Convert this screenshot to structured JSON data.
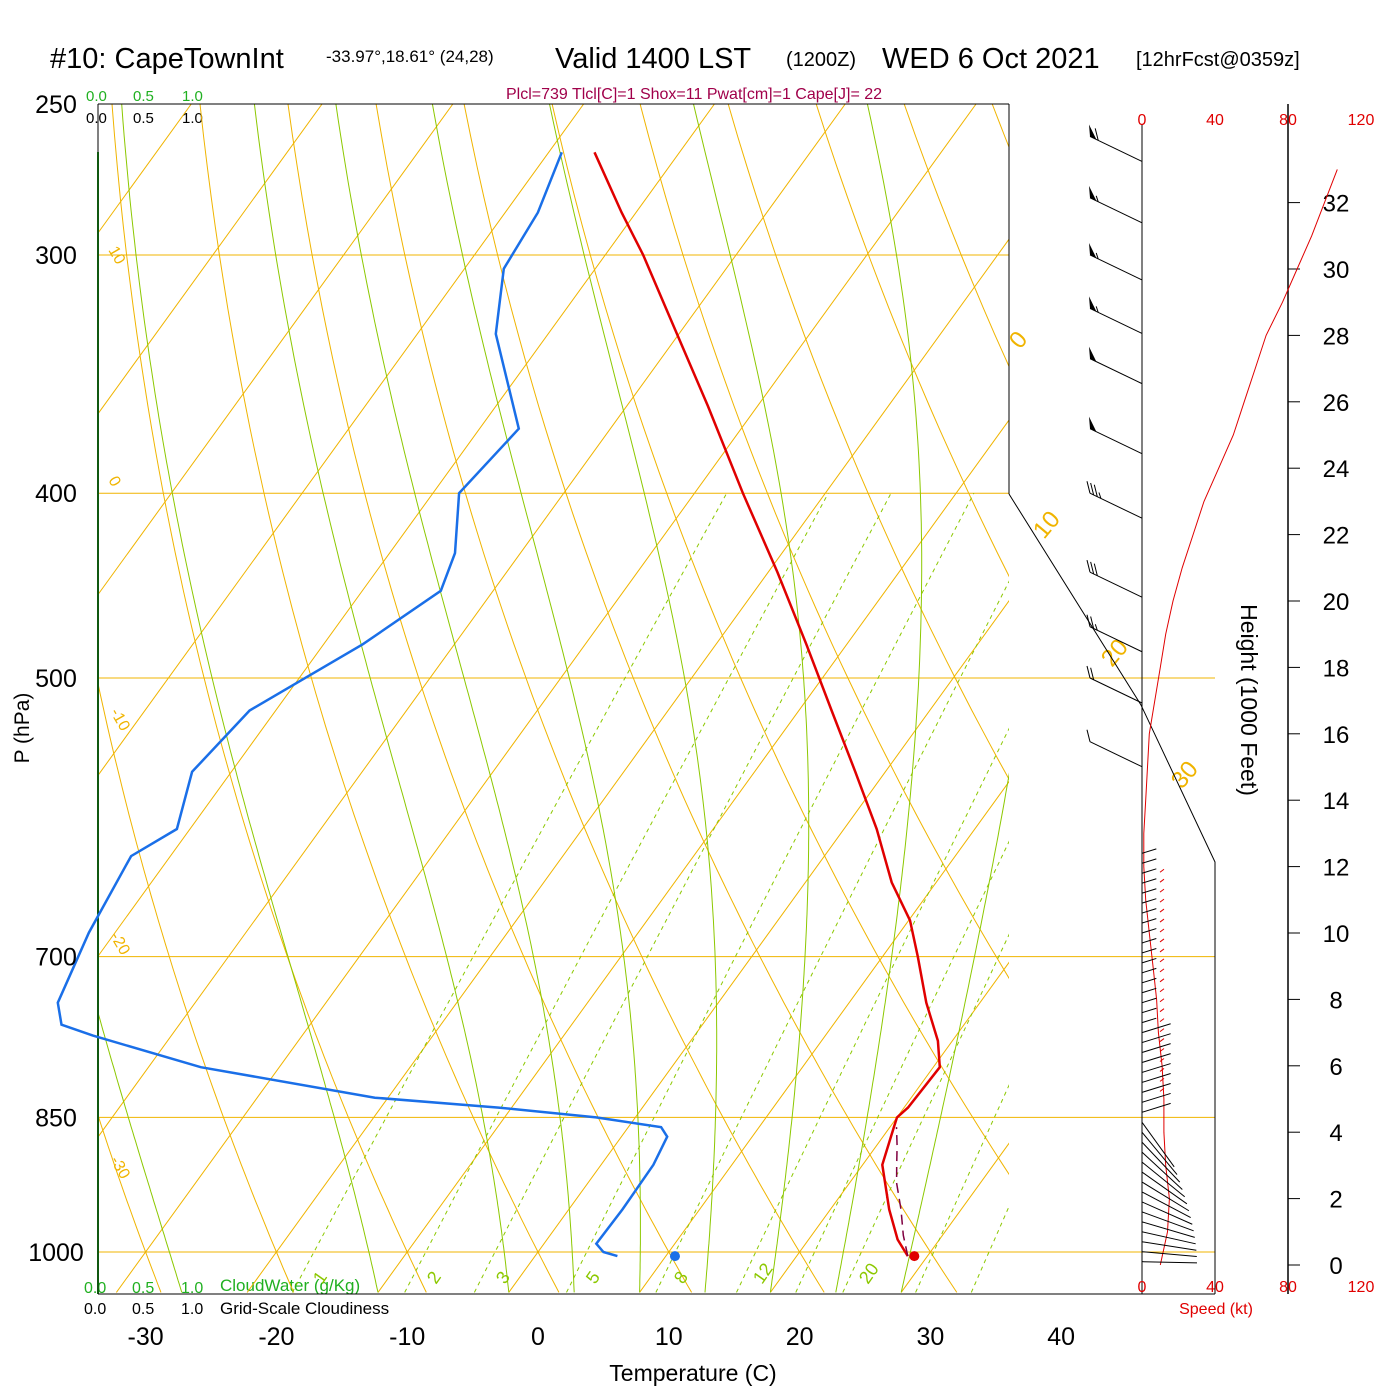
{
  "title": {
    "station": "#10: CapeTownInt",
    "coords": "-33.97°,18.61° (24,28)",
    "valid_main": "Valid 1400 LST",
    "valid_z": "(1200Z)",
    "date": "WED 6 Oct 2021",
    "forecast": "[12hrFcst@0359z]"
  },
  "indices_text": "Plcl=739 Tlcl[C]=1 Shox=11 Pwat[cm]=1 Cape[J]= 22",
  "cloud_scales": {
    "values": [
      "0.0",
      "0.5",
      "1.0"
    ],
    "cloudwater_label": "CloudWater (g/Kg)",
    "cloudiness_label": "Grid-Scale Cloudiness"
  },
  "colors": {
    "isotherm": "#f0b400",
    "dry_adiabat": "#f0b400",
    "moist_adiabat": "#8cc800",
    "mixing_ratio": "#8cc800",
    "temperature": "#e00000",
    "dewpoint": "#1a6fe8",
    "parcel": "#800040",
    "cloud_scale": "#20b020",
    "indices": "#a0004a",
    "speed": "#e00000"
  },
  "chart_data": {
    "type": "line",
    "subtype": "skew-T log-P sounding",
    "xlabel": "Temperature (C)",
    "ylabel": "P (hPa)",
    "x_ticks": [
      -30,
      -20,
      -10,
      0,
      10,
      20,
      30,
      40
    ],
    "y_ticks": [
      250,
      300,
      400,
      500,
      700,
      850,
      1000
    ],
    "xlim": [
      -34,
      36
    ],
    "ylim": [
      1050,
      250
    ],
    "isotherm_labels": [
      -30,
      -20,
      -10,
      0,
      10,
      20,
      30
    ],
    "dry_adiabat_labels": [
      10,
      0,
      -10,
      -20,
      -30
    ],
    "mixing_ratio_labels": [
      "1",
      "2",
      "3",
      "5",
      "8",
      "12",
      "20"
    ],
    "temperature": {
      "name": "Temperature",
      "p": [
        1005,
        985,
        950,
        900,
        860,
        850,
        840,
        800,
        775,
        740,
        700,
        670,
        640,
        600,
        560,
        520,
        480,
        440,
        400,
        360,
        320,
        300,
        285,
        265
      ],
      "t": [
        28.5,
        26.8,
        24.5,
        21.5,
        20.3,
        20.0,
        20.3,
        20.5,
        18.9,
        15.9,
        12.7,
        10.1,
        6.6,
        2.5,
        -2.3,
        -7.5,
        -13.1,
        -19.3,
        -26.3,
        -33.8,
        -42.4,
        -47.1,
        -51.1,
        -56.5
      ]
    },
    "dewpoint": {
      "name": "Dewpoint",
      "p": [
        1005,
        1000,
        990,
        950,
        900,
        870,
        860,
        850,
        840,
        830,
        800,
        770,
        760,
        740,
        680,
        620,
        600,
        560,
        520,
        480,
        450,
        430,
        400,
        370,
        330,
        305,
        285,
        265
      ],
      "td": [
        6.3,
        5.0,
        4.0,
        4.1,
        4.0,
        3.5,
        2.5,
        -3.0,
        -11.0,
        -21.0,
        -36.0,
        -46.0,
        -49.0,
        -50.5,
        -52.0,
        -53.0,
        -51.0,
        -53.0,
        -52.0,
        -47.0,
        -44.0,
        -45.0,
        -48.0,
        -47.0,
        -54.0,
        -57.0,
        -57.5,
        -59.0
      ]
    },
    "parcel": {
      "name": "Parcel",
      "p": [
        1005,
        980,
        950,
        920,
        900,
        880,
        860
      ],
      "t": [
        28.5,
        27.0,
        25.4,
        23.6,
        22.6,
        21.6,
        20.5
      ]
    },
    "surface_points": {
      "temperature": 29.0,
      "dewpoint": 10.7,
      "pressure": 1005
    },
    "wind_panel": {
      "speed_ticks": [
        0,
        40,
        80,
        120
      ],
      "speed_label": "Speed (kt)",
      "height_label": "Height (1000 Feet)",
      "height_ticks": [
        0,
        2,
        4,
        6,
        8,
        10,
        12,
        14,
        16,
        18,
        20,
        22,
        24,
        26,
        28,
        30,
        32
      ],
      "speed_profile": {
        "height_kft": [
          0,
          1,
          2,
          3,
          4,
          5,
          6,
          7,
          8,
          9,
          10,
          11,
          12,
          13,
          14,
          15,
          16,
          17,
          18,
          19,
          20,
          21,
          22,
          23,
          24,
          25,
          26,
          27,
          28,
          29,
          30,
          31,
          32,
          33
        ],
        "speed_kt": [
          10,
          14,
          15,
          13,
          12,
          12,
          11,
          9,
          8,
          6,
          4,
          2,
          1,
          1,
          2,
          3,
          4,
          7,
          10,
          13,
          17,
          22,
          28,
          34,
          42,
          50,
          56,
          62,
          68,
          77,
          85,
          93,
          100,
          107
        ]
      },
      "barbs": [
        {
          "p": 260,
          "speed": 60,
          "dir": 290
        },
        {
          "p": 280,
          "speed": 55,
          "dir": 290
        },
        {
          "p": 300,
          "speed": 55,
          "dir": 285
        },
        {
          "p": 320,
          "speed": 55,
          "dir": 285
        },
        {
          "p": 340,
          "speed": 50,
          "dir": 285
        },
        {
          "p": 370,
          "speed": 50,
          "dir": 285
        },
        {
          "p": 400,
          "speed": 35,
          "dir": 280
        },
        {
          "p": 440,
          "speed": 30,
          "dir": 275
        },
        {
          "p": 470,
          "speed": 25,
          "dir": 280
        },
        {
          "p": 500,
          "speed": 20,
          "dir": 285
        },
        {
          "p": 540,
          "speed": 10,
          "dir": 300
        }
      ]
    }
  }
}
